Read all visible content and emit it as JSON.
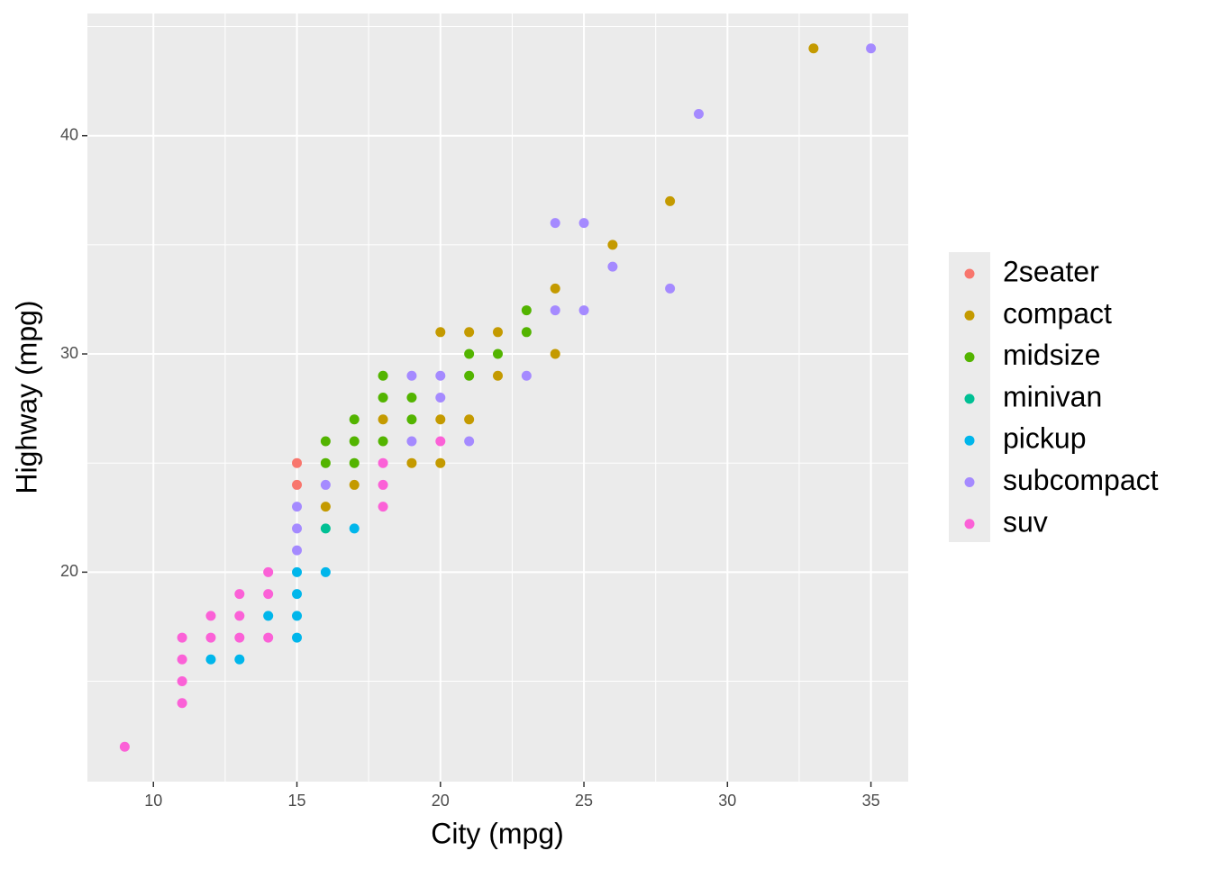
{
  "chart_data": {
    "type": "scatter",
    "x_label": "City (mpg)",
    "y_label": "Highway (mpg)",
    "xlim": [
      7.7,
      36.3
    ],
    "ylim": [
      10.4,
      45.6
    ],
    "xticks": [
      10,
      15,
      20,
      25,
      30,
      35
    ],
    "yticks": [
      20,
      30,
      40
    ],
    "x_minor_grid": [
      12.5,
      17.5,
      22.5,
      27.5,
      32.5
    ],
    "y_minor_grid": [
      15,
      25,
      35,
      45
    ],
    "grid": true,
    "legend_position": "right",
    "series": [
      {
        "name": "2seater",
        "color": "#F8766D",
        "x": [
          15,
          15
        ],
        "y": [
          25,
          24
        ]
      },
      {
        "name": "compact",
        "color": "#C49A00",
        "x": [
          33,
          28,
          26,
          24,
          24,
          20,
          21,
          22,
          22,
          20,
          21,
          20,
          19,
          18,
          17,
          16
        ],
        "y": [
          44,
          37,
          35,
          33,
          30,
          31,
          31,
          31,
          29,
          27,
          27,
          25,
          25,
          27,
          24,
          23
        ]
      },
      {
        "name": "midsize",
        "color": "#53B400",
        "x": [
          23,
          23,
          21,
          22,
          21,
          18,
          18,
          19,
          19,
          17,
          16,
          17,
          18,
          16,
          17
        ],
        "y": [
          32,
          31,
          30,
          30,
          29,
          29,
          28,
          28,
          27,
          27,
          26,
          26,
          26,
          25,
          25
        ]
      },
      {
        "name": "minivan",
        "color": "#00C094",
        "x": [
          16
        ],
        "y": [
          22
        ]
      },
      {
        "name": "pickup",
        "color": "#00B6EB",
        "x": [
          17,
          16,
          15,
          15,
          15,
          15,
          14,
          13,
          12
        ],
        "y": [
          22,
          20,
          20,
          19,
          18,
          17,
          18,
          16,
          16
        ]
      },
      {
        "name": "subcompact",
        "color": "#A58AFF",
        "x": [
          35,
          29,
          24,
          25,
          26,
          28,
          24,
          25,
          23,
          19,
          20,
          20,
          21,
          19,
          16,
          15,
          15,
          15
        ],
        "y": [
          44,
          41,
          36,
          36,
          34,
          33,
          32,
          32,
          29,
          29,
          29,
          28,
          26,
          26,
          24,
          23,
          22,
          21
        ]
      },
      {
        "name": "suv",
        "color": "#FB61D7",
        "x": [
          20,
          18,
          18,
          18,
          14,
          13,
          14,
          12,
          13,
          11,
          12,
          13,
          14,
          11,
          11,
          11,
          9
        ],
        "y": [
          26,
          25,
          24,
          23,
          20,
          19,
          19,
          18,
          18,
          17,
          17,
          17,
          17,
          16,
          15,
          14,
          12
        ]
      }
    ]
  }
}
